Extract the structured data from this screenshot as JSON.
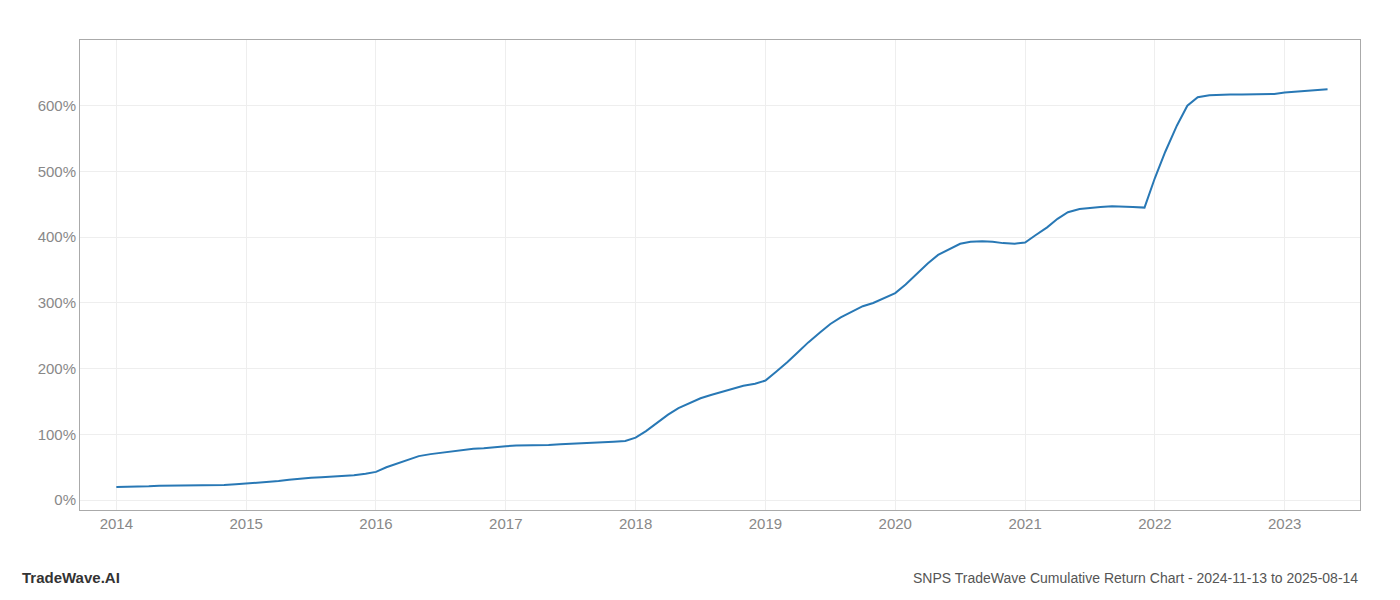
{
  "chart_data": {
    "type": "line",
    "title": "SNPS TradeWave Cumulative Return Chart - 2024-11-13 to 2025-08-14",
    "annotations": [
      "TradeWave.AI"
    ],
    "color": "#2878b5",
    "grid": true,
    "x": [
      2014.0,
      2014.08,
      2014.17,
      2014.25,
      2014.33,
      2014.42,
      2014.5,
      2014.58,
      2014.67,
      2014.75,
      2014.83,
      2014.92,
      2015.0,
      2015.08,
      2015.17,
      2015.25,
      2015.33,
      2015.42,
      2015.5,
      2015.58,
      2015.67,
      2015.75,
      2015.83,
      2015.92,
      2016.0,
      2016.08,
      2016.17,
      2016.25,
      2016.33,
      2016.42,
      2016.5,
      2016.58,
      2016.67,
      2016.75,
      2016.83,
      2016.92,
      2017.0,
      2017.08,
      2017.17,
      2017.25,
      2017.33,
      2017.42,
      2017.5,
      2017.58,
      2017.67,
      2017.75,
      2017.83,
      2017.92,
      2018.0,
      2018.08,
      2018.17,
      2018.25,
      2018.33,
      2018.42,
      2018.5,
      2018.58,
      2018.67,
      2018.75,
      2018.83,
      2018.92,
      2019.0,
      2019.08,
      2019.17,
      2019.25,
      2019.33,
      2019.42,
      2019.5,
      2019.58,
      2019.67,
      2019.75,
      2019.83,
      2019.92,
      2020.0,
      2020.08,
      2020.17,
      2020.25,
      2020.33,
      2020.42,
      2020.5,
      2020.58,
      2020.67,
      2020.75,
      2020.83,
      2020.92,
      2021.0,
      2021.08,
      2021.17,
      2021.25,
      2021.33,
      2021.42,
      2021.5,
      2021.58,
      2021.67,
      2021.75,
      2021.83,
      2021.92,
      2022.0,
      2022.08,
      2022.17,
      2022.25,
      2022.33,
      2022.42,
      2022.5,
      2022.58,
      2022.67,
      2022.75,
      2022.83,
      2022.92,
      2023.0,
      2023.08,
      2023.17,
      2023.25,
      2023.33
    ],
    "values": [
      20,
      20,
      21,
      21,
      22,
      22,
      22,
      22,
      23,
      23,
      23,
      24,
      25,
      26,
      27,
      29,
      31,
      33,
      34,
      35,
      36,
      37,
      38,
      40,
      43,
      50,
      56,
      62,
      67,
      70,
      72,
      74,
      76,
      78,
      79,
      81,
      82,
      83,
      83,
      84,
      84,
      85,
      86,
      87,
      88,
      89,
      89,
      90,
      95,
      105,
      118,
      130,
      140,
      148,
      155,
      160,
      165,
      170,
      174,
      177,
      182,
      195,
      210,
      225,
      240,
      255,
      268,
      278,
      287,
      295,
      300,
      308,
      315,
      328,
      345,
      360,
      373,
      382,
      390,
      393,
      394,
      393,
      391,
      390,
      392,
      403,
      415,
      428,
      438,
      443,
      445,
      446,
      447,
      446,
      446,
      445,
      490,
      530,
      570,
      600,
      613,
      616,
      617,
      617,
      617,
      617,
      617,
      618,
      620,
      621,
      622,
      623,
      625
    ],
    "xlim": [
      2013.72,
      2023.58
    ],
    "xticks": [
      2014,
      2015,
      2016,
      2017,
      2018,
      2019,
      2020,
      2021,
      2022,
      2023
    ],
    "ylim": [
      -15,
      700
    ],
    "yticks": [
      {
        "value": 0,
        "label": "0%"
      },
      {
        "value": 100,
        "label": "100%"
      },
      {
        "value": 200,
        "label": "200%"
      },
      {
        "value": 300,
        "label": "300%"
      },
      {
        "value": 400,
        "label": "400%"
      },
      {
        "value": 500,
        "label": "500%"
      },
      {
        "value": 600,
        "label": "600%"
      }
    ]
  }
}
